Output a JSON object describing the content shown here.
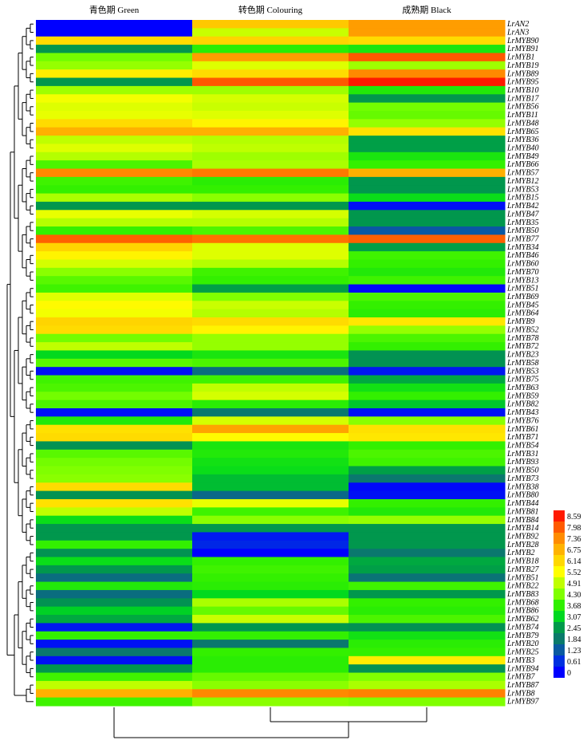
{
  "chart_data": {
    "type": "heatmap",
    "columns": [
      "青色期 Green",
      "转色期 Colouring",
      "成熟期 Black"
    ],
    "genes": [
      {
        "name": "LrAN2",
        "values": [
          0.0,
          6.4,
          7.1
        ]
      },
      {
        "name": "LrAN3",
        "values": [
          0.0,
          5.0,
          7.1
        ]
      },
      {
        "name": "LrMYB90",
        "values": [
          6.1,
          6.2,
          6.1
        ]
      },
      {
        "name": "LrMYB91",
        "values": [
          2.4,
          3.6,
          3.4
        ]
      },
      {
        "name": "LrMYB1",
        "values": [
          4.2,
          7.1,
          8.0
        ]
      },
      {
        "name": "LrMYB19",
        "values": [
          4.5,
          5.2,
          4.6
        ]
      },
      {
        "name": "LrMYB89",
        "values": [
          5.8,
          6.1,
          7.4
        ]
      },
      {
        "name": "LrMYB95",
        "values": [
          2.4,
          8.0,
          8.59
        ]
      },
      {
        "name": "LrMYB10",
        "values": [
          4.6,
          4.6,
          3.5
        ]
      },
      {
        "name": "LrMYB17",
        "values": [
          5.4,
          5.1,
          2.4
        ]
      },
      {
        "name": "LrMYB56",
        "values": [
          5.2,
          5.0,
          4.2
        ]
      },
      {
        "name": "LrMYB11",
        "values": [
          5.3,
          5.2,
          4.1
        ]
      },
      {
        "name": "LrMYB48",
        "values": [
          6.1,
          5.7,
          4.5
        ]
      },
      {
        "name": "LrMYB65",
        "values": [
          6.8,
          6.8,
          6.0
        ]
      },
      {
        "name": "LrMYB36",
        "values": [
          4.9,
          4.8,
          2.5
        ]
      },
      {
        "name": "LrMYB40",
        "values": [
          5.2,
          4.9,
          2.5
        ]
      },
      {
        "name": "LrMYB49",
        "values": [
          4.8,
          4.6,
          3.4
        ]
      },
      {
        "name": "LrMYB66",
        "values": [
          3.9,
          4.7,
          3.7
        ]
      },
      {
        "name": "LrMYB57",
        "values": [
          7.4,
          7.6,
          6.8
        ]
      },
      {
        "name": "LrMYB12",
        "values": [
          3.8,
          3.6,
          2.4
        ]
      },
      {
        "name": "LrMYB53",
        "values": [
          3.7,
          3.7,
          2.4
        ]
      },
      {
        "name": "LrMYB15",
        "values": [
          4.7,
          4.4,
          3.2
        ]
      },
      {
        "name": "LrMYB42",
        "values": [
          2.4,
          2.4,
          0.2
        ]
      },
      {
        "name": "LrMYB47",
        "values": [
          5.3,
          5.1,
          2.4
        ]
      },
      {
        "name": "LrMYB35",
        "values": [
          4.8,
          4.8,
          2.4
        ]
      },
      {
        "name": "LrMYB50",
        "values": [
          3.7,
          3.9,
          1.2
        ]
      },
      {
        "name": "LrMYB77",
        "values": [
          7.9,
          7.7,
          7.9
        ]
      },
      {
        "name": "LrMYB34",
        "values": [
          6.2,
          5.2,
          2.5
        ]
      },
      {
        "name": "LrMYB46",
        "values": [
          5.7,
          5.2,
          3.8
        ]
      },
      {
        "name": "LrMYB60",
        "values": [
          5.1,
          4.8,
          3.7
        ]
      },
      {
        "name": "LrMYB70",
        "values": [
          4.4,
          3.8,
          3.5
        ]
      },
      {
        "name": "LrMYB13",
        "values": [
          4.0,
          3.7,
          3.8
        ]
      },
      {
        "name": "LrMYB51",
        "values": [
          3.8,
          2.5,
          0.1
        ]
      },
      {
        "name": "LrMYB69",
        "values": [
          5.2,
          4.3,
          3.9
        ]
      },
      {
        "name": "LrMYB45",
        "values": [
          5.6,
          5.0,
          3.7
        ]
      },
      {
        "name": "LrMYB64",
        "values": [
          5.4,
          4.8,
          3.6
        ]
      },
      {
        "name": "LrMYB9",
        "values": [
          6.2,
          6.1,
          5.9
        ]
      },
      {
        "name": "LrMYB52",
        "values": [
          6.1,
          5.7,
          4.5
        ]
      },
      {
        "name": "LrMYB78",
        "values": [
          4.2,
          4.5,
          3.9
        ]
      },
      {
        "name": "LrMYB72",
        "values": [
          4.9,
          4.5,
          3.7
        ]
      },
      {
        "name": "LrMYB23",
        "values": [
          3.1,
          3.4,
          2.3
        ]
      },
      {
        "name": "LrMYB58",
        "values": [
          4.0,
          3.9,
          2.3
        ]
      },
      {
        "name": "LrMYB53",
        "values": [
          0.2,
          1.6,
          0.3
        ]
      },
      {
        "name": "LrMYB75",
        "values": [
          3.8,
          3.8,
          2.6
        ]
      },
      {
        "name": "LrMYB63",
        "values": [
          3.9,
          4.9,
          3.3
        ]
      },
      {
        "name": "LrMYB59",
        "values": [
          4.2,
          5.1,
          3.7
        ]
      },
      {
        "name": "LrMYB82",
        "values": [
          3.9,
          3.6,
          2.9
        ]
      },
      {
        "name": "LrMYB43",
        "values": [
          0.2,
          1.8,
          0.2
        ]
      },
      {
        "name": "LrMYB76",
        "values": [
          3.5,
          5.1,
          4.4
        ]
      },
      {
        "name": "LrMYB61",
        "values": [
          6.0,
          7.0,
          6.0
        ]
      },
      {
        "name": "LrMYB71",
        "values": [
          6.1,
          5.6,
          5.9
        ]
      },
      {
        "name": "LrMYB54",
        "values": [
          2.3,
          3.4,
          3.7
        ]
      },
      {
        "name": "LrMYB31",
        "values": [
          4.0,
          3.5,
          3.9
        ]
      },
      {
        "name": "LrMYB93",
        "values": [
          4.2,
          3.3,
          3.8
        ]
      },
      {
        "name": "LrMYB50",
        "values": [
          4.3,
          3.2,
          2.5
        ]
      },
      {
        "name": "LrMYB73",
        "values": [
          4.4,
          2.8,
          1.8
        ]
      },
      {
        "name": "LrMYB38",
        "values": [
          6.1,
          2.8,
          0.1
        ]
      },
      {
        "name": "LrMYB80",
        "values": [
          2.3,
          1.5,
          0.2
        ]
      },
      {
        "name": "LrMYB44",
        "values": [
          6.0,
          5.3,
          3.7
        ]
      },
      {
        "name": "LrMYB81",
        "values": [
          4.9,
          3.8,
          3.5
        ]
      },
      {
        "name": "LrMYB84",
        "values": [
          3.2,
          4.4,
          4.5
        ]
      },
      {
        "name": "LrMYB14",
        "values": [
          2.4,
          2.4,
          2.4
        ]
      },
      {
        "name": "LrMYB92",
        "values": [
          2.4,
          0.3,
          2.4
        ]
      },
      {
        "name": "LrMYB28",
        "values": [
          3.7,
          0.5,
          2.4
        ]
      },
      {
        "name": "LrMYB2",
        "values": [
          2.3,
          0.0,
          1.8
        ]
      },
      {
        "name": "LrMYB18",
        "values": [
          3.2,
          3.7,
          2.6
        ]
      },
      {
        "name": "LrMYB27",
        "values": [
          2.4,
          3.8,
          2.5
        ]
      },
      {
        "name": "LrMYB51",
        "values": [
          1.6,
          3.7,
          1.7
        ]
      },
      {
        "name": "LrMYB22",
        "values": [
          3.5,
          3.6,
          3.8
        ]
      },
      {
        "name": "LrMYB83",
        "values": [
          1.6,
          3.1,
          2.4
        ]
      },
      {
        "name": "LrMYB68",
        "values": [
          2.3,
          4.7,
          3.7
        ]
      },
      {
        "name": "LrMYB86",
        "values": [
          3.0,
          4.1,
          3.6
        ]
      },
      {
        "name": "LrMYB62",
        "values": [
          2.6,
          5.0,
          3.9
        ]
      },
      {
        "name": "LrMYB74",
        "values": [
          0.3,
          2.4,
          2.3
        ]
      },
      {
        "name": "LrMYB79",
        "values": [
          3.7,
          3.7,
          3.3
        ]
      },
      {
        "name": "LrMYB20",
        "values": [
          0.2,
          1.8,
          3.6
        ]
      },
      {
        "name": "LrMYB25",
        "values": [
          1.8,
          3.7,
          3.7
        ]
      },
      {
        "name": "LrMYB3",
        "values": [
          0.2,
          3.6,
          5.8
        ]
      },
      {
        "name": "LrMYB94",
        "values": [
          2.4,
          3.6,
          2.3
        ]
      },
      {
        "name": "LrMYB7",
        "values": [
          3.8,
          4.1,
          4.3
        ]
      },
      {
        "name": "LrMYB87",
        "values": [
          4.9,
          4.4,
          4.7
        ]
      },
      {
        "name": "LrMYB8",
        "values": [
          6.8,
          7.4,
          7.5
        ]
      },
      {
        "name": "LrMYB97",
        "values": [
          3.8,
          4.4,
          4.3
        ]
      }
    ],
    "legend": {
      "ticks": [
        "8.59",
        "7.98",
        "7.36",
        "6.75",
        "6.14",
        "5.52",
        "4.91",
        "4.30",
        "3.68",
        "3.07",
        "2.45",
        "1.84",
        "1.23",
        "0.61",
        "0"
      ],
      "colors": [
        "#ff1a00",
        "#ff5a00",
        "#ff8c00",
        "#ffb300",
        "#ffd800",
        "#ffff00",
        "#c0ff00",
        "#80ff00",
        "#30f000",
        "#00d820",
        "#009a4a",
        "#0a7a6a",
        "#0a5aa0",
        "#0030e0",
        "#0000ff"
      ],
      "placement": "bottom-right"
    },
    "scale": {
      "min": 0,
      "max": 8.59,
      "stops": [
        [
          0.0,
          "#0000ff"
        ],
        [
          0.61,
          "#0030e0"
        ],
        [
          1.23,
          "#0a5aa0"
        ],
        [
          1.84,
          "#0a7a6a"
        ],
        [
          2.45,
          "#009a4a"
        ],
        [
          3.07,
          "#00d820"
        ],
        [
          3.68,
          "#30f000"
        ],
        [
          4.3,
          "#80ff00"
        ],
        [
          4.91,
          "#c0ff00"
        ],
        [
          5.52,
          "#ffff00"
        ],
        [
          6.14,
          "#ffd800"
        ],
        [
          6.75,
          "#ffb300"
        ],
        [
          7.36,
          "#ff8c00"
        ],
        [
          7.98,
          "#ff5a00"
        ],
        [
          8.59,
          "#ff1a00"
        ]
      ]
    }
  }
}
